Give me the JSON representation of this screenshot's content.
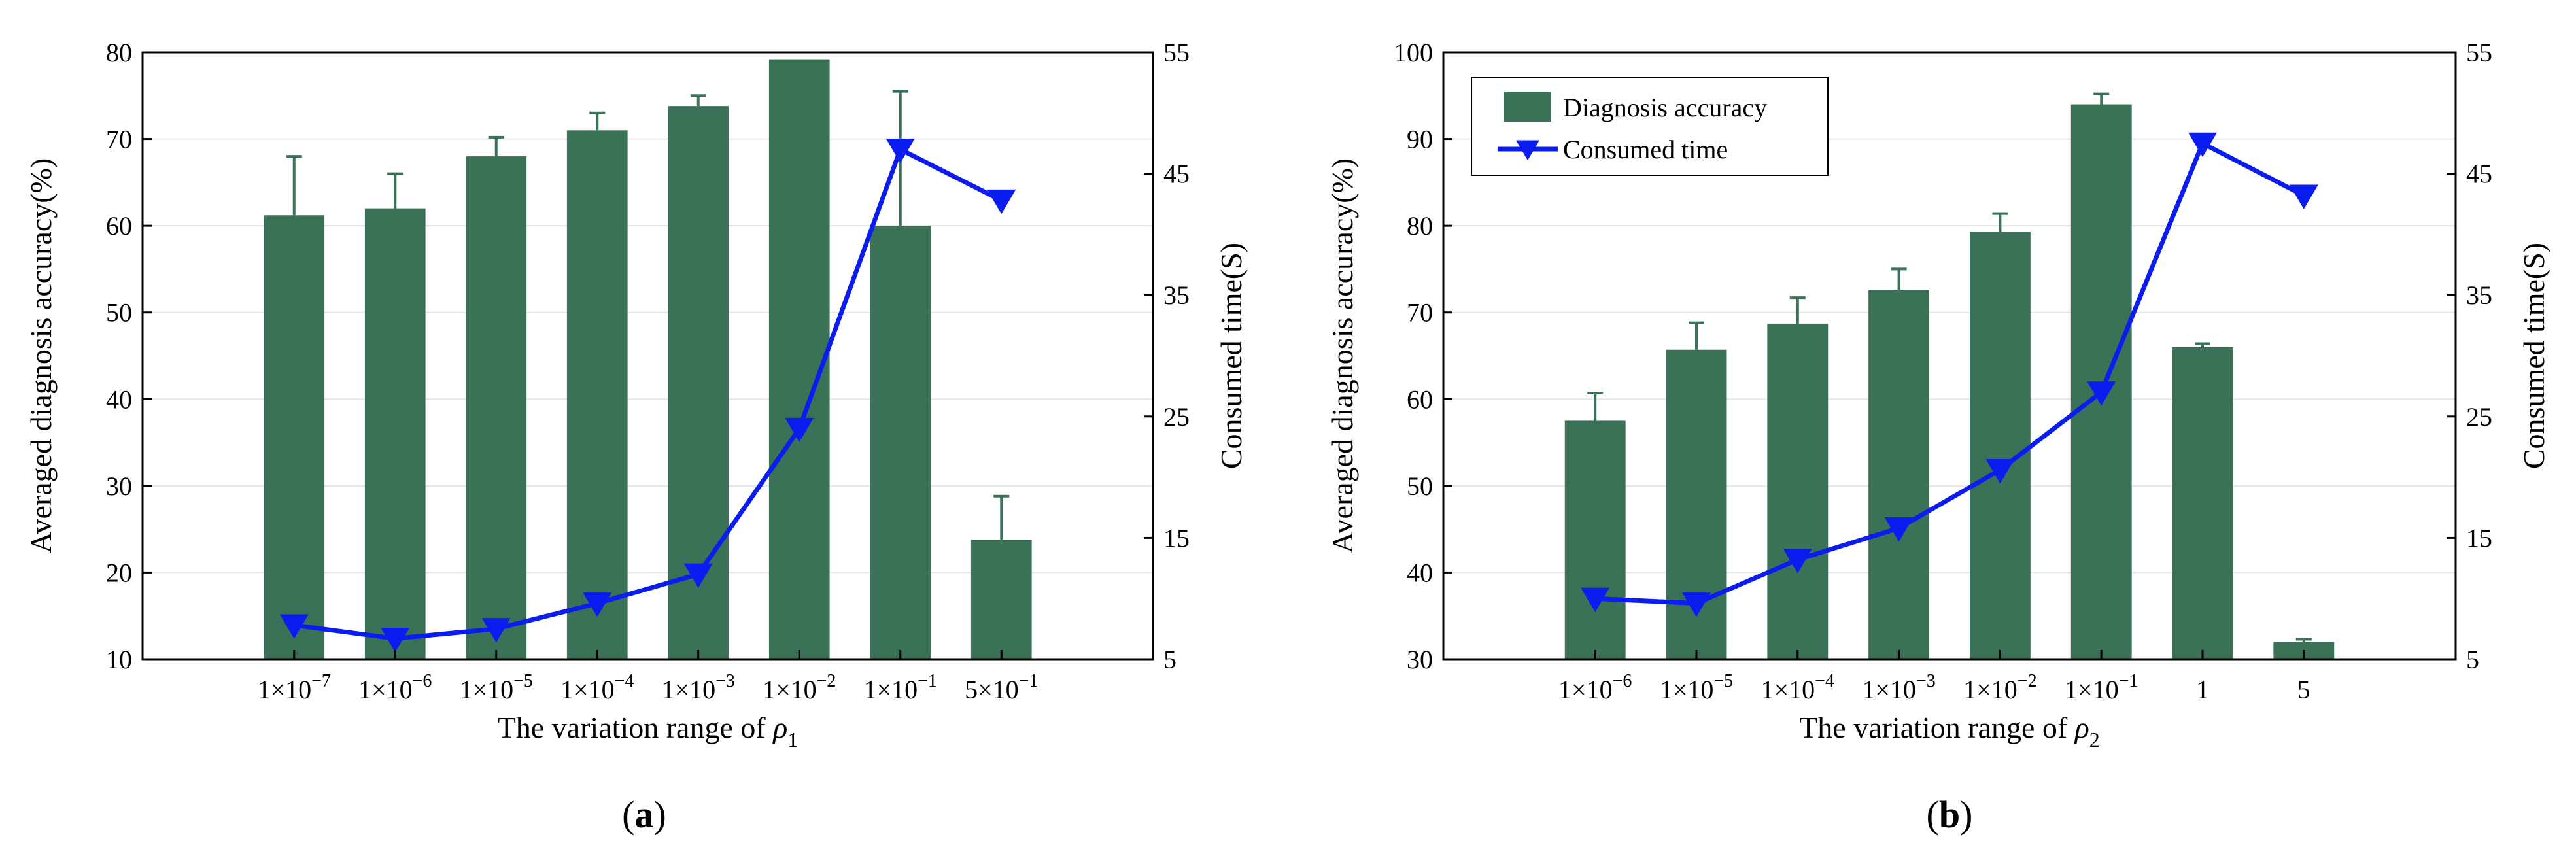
{
  "chart_data": [
    {
      "type": "bar",
      "panel": "(a)",
      "panel_letter": "a",
      "categories": [
        {
          "base": "1×10",
          "exp": "−7"
        },
        {
          "base": "1×10",
          "exp": "−6"
        },
        {
          "base": "1×10",
          "exp": "−5"
        },
        {
          "base": "1×10",
          "exp": "−4"
        },
        {
          "base": "1×10",
          "exp": "−3"
        },
        {
          "base": "1×10",
          "exp": "−2"
        },
        {
          "base": "1×10",
          "exp": "−1"
        },
        {
          "base": "5×10",
          "exp": "−1"
        }
      ],
      "series": [
        {
          "name": "Diagnosis accuracy",
          "kind": "bar",
          "axis": "left",
          "values": [
            61.2,
            62.0,
            68.0,
            71.0,
            73.8,
            79.2,
            60.0,
            23.8
          ],
          "error": [
            6.8,
            4.0,
            2.2,
            2.0,
            1.2,
            0.0,
            15.5,
            5.0
          ]
        },
        {
          "name": "Consumed time",
          "kind": "line",
          "axis": "right",
          "values": [
            7.8,
            6.7,
            7.5,
            9.6,
            12.0,
            24.0,
            47.0,
            42.8
          ]
        }
      ],
      "xlabel": "The variation range of ρ",
      "xlabel_sub": "1",
      "ylabel": "Averaged diagnosis accuracy(%)",
      "y2label": "Consumed time(S)",
      "ylim": [
        10,
        80
      ],
      "yticks": [
        10,
        20,
        30,
        40,
        50,
        60,
        70,
        80
      ],
      "y2lim": [
        5,
        55
      ],
      "y2ticks": [
        5,
        15,
        25,
        35,
        45,
        55
      ],
      "legend": false,
      "colors": {
        "bar": "#3b7257",
        "line": "#0a1cf0",
        "error": "#3b7257"
      }
    },
    {
      "type": "bar",
      "panel": "(b)",
      "panel_letter": "b",
      "categories": [
        {
          "base": "1×10",
          "exp": "−6"
        },
        {
          "base": "1×10",
          "exp": "−5"
        },
        {
          "base": "1×10",
          "exp": "−4"
        },
        {
          "base": "1×10",
          "exp": "−3"
        },
        {
          "base": "1×10",
          "exp": "−2"
        },
        {
          "base": "1×10",
          "exp": "−1"
        },
        {
          "base": "1",
          "exp": ""
        },
        {
          "base": "5",
          "exp": ""
        }
      ],
      "series": [
        {
          "name": "Diagnosis accuracy",
          "kind": "bar",
          "axis": "left",
          "values": [
            57.5,
            65.7,
            68.7,
            72.6,
            79.3,
            94.0,
            66.0,
            32.0
          ],
          "error": [
            3.2,
            3.1,
            3.0,
            2.4,
            2.1,
            1.2,
            0.4,
            0.3
          ]
        },
        {
          "name": "Consumed time",
          "kind": "line",
          "axis": "right",
          "values": [
            10.0,
            9.6,
            13.2,
            15.8,
            20.6,
            27.0,
            47.5,
            43.2
          ]
        }
      ],
      "xlabel": "The variation range of ρ",
      "xlabel_sub": "2",
      "ylabel": "Averaged diagnosis accuracy(%)",
      "y2label": "Consumed time(S)",
      "ylim": [
        30,
        100
      ],
      "yticks": [
        30,
        40,
        50,
        60,
        70,
        80,
        90,
        100
      ],
      "y2lim": [
        5,
        55
      ],
      "y2ticks": [
        5,
        15,
        25,
        35,
        45,
        55
      ],
      "legend": true,
      "legend_position": "top-left",
      "legend_entries": [
        "Diagnosis accuracy",
        "Consumed time"
      ],
      "colors": {
        "bar": "#3b7257",
        "line": "#0a1cf0",
        "error": "#3b7257"
      }
    }
  ]
}
